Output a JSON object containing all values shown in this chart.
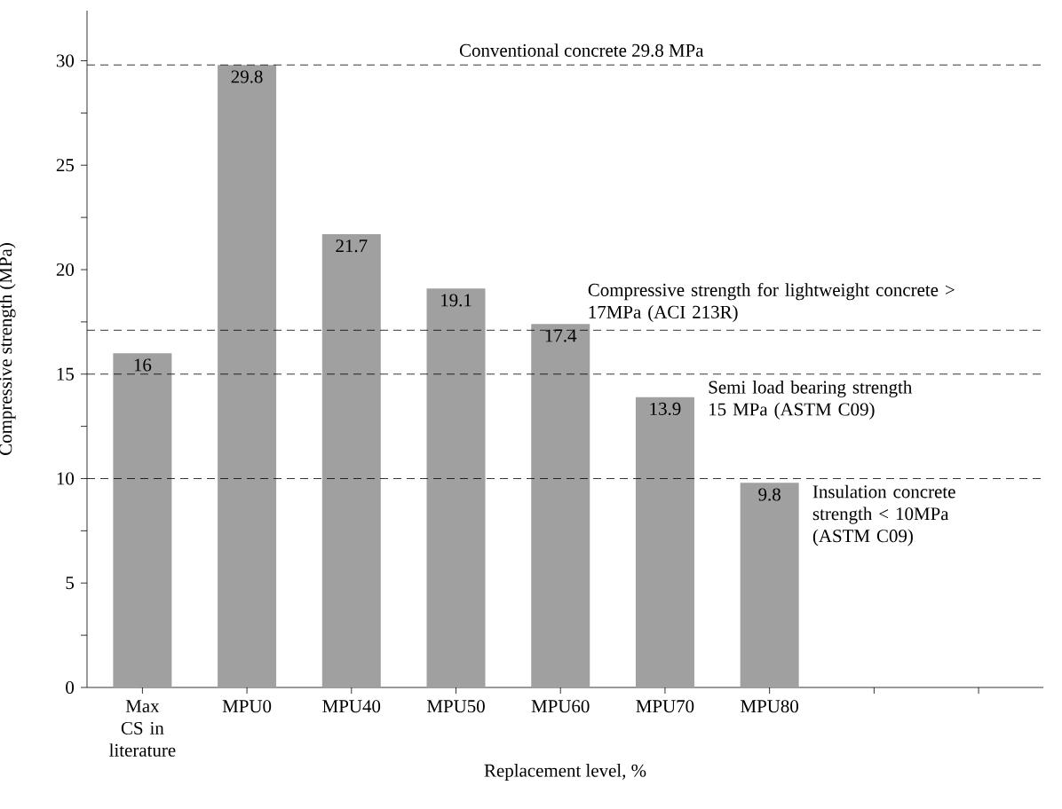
{
  "chart_data": {
    "type": "bar",
    "xlabel": "Replacement level, %",
    "ylabel": "Compressive strength (MPa)",
    "categories": [
      "Max CS in literature",
      "MPU0",
      "MPU40",
      "MPU50",
      "MPU60",
      "MPU70",
      "MPU80",
      null,
      null
    ],
    "values": [
      16,
      29.8,
      21.7,
      19.1,
      17.4,
      13.9,
      9.8,
      null,
      null
    ],
    "color": "#a0a0a0",
    "data_labels": true,
    "ylim": [
      0,
      32.4
    ],
    "yticks": [
      0,
      {
        "value": 2.5,
        "label": null
      },
      5,
      {
        "value": 7.5,
        "label": null
      },
      10,
      {
        "value": 12.5,
        "label": null
      },
      15,
      {
        "value": 17.5,
        "label": null
      },
      20,
      {
        "value": 22.5,
        "label": null
      },
      25,
      {
        "value": 27.5,
        "label": null
      },
      30
    ],
    "ref_lines": [
      {
        "axis": "y",
        "value": 29.8,
        "label": "Conventional concrete 29.8 MPa",
        "line_style": "dashed",
        "color": "#000000"
      },
      {
        "axis": "y",
        "value": 17.1,
        "label": "Compressive strength for lightweight concrete > 17MPa (ACI 213R)",
        "line_style": "dashed",
        "color": "#000000"
      },
      {
        "axis": "y",
        "value": 15,
        "label": "Semi load bearing strength 15 MPa (ASTM C09)",
        "line_style": "dashed",
        "color": "#000000"
      },
      {
        "axis": "y",
        "value": 10,
        "label": "Insulation concrete strength < 10MPa (ASTM C09)",
        "line_style": "dashed",
        "color": "#000000"
      }
    ],
    "grid": false
  }
}
